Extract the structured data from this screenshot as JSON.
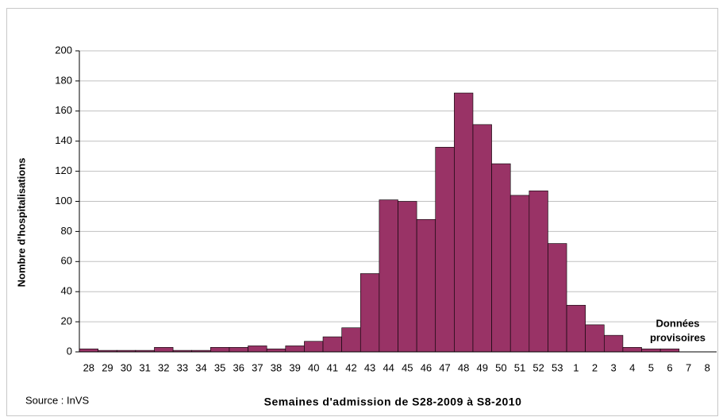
{
  "chart_data": {
    "type": "bar",
    "y_label": "Nombre d'hospitalisations",
    "x_label": "Semaines d'admission de S28-2009 à S8-2010",
    "source": "Source : InVS",
    "annotation_lines": [
      "Données",
      "provisoires"
    ],
    "categories": [
      "28",
      "29",
      "30",
      "31",
      "32",
      "33",
      "34",
      "35",
      "36",
      "37",
      "38",
      "39",
      "40",
      "41",
      "42",
      "43",
      "44",
      "45",
      "46",
      "47",
      "48",
      "49",
      "50",
      "51",
      "52",
      "53",
      "1",
      "2",
      "3",
      "4",
      "5",
      "6",
      "7",
      "8"
    ],
    "values": [
      2,
      1,
      1,
      1,
      3,
      1,
      1,
      3,
      3,
      4,
      2,
      4,
      7,
      10,
      16,
      52,
      101,
      100,
      88,
      136,
      172,
      151,
      125,
      104,
      107,
      72,
      31,
      18,
      11,
      3,
      2,
      2,
      0,
      0
    ],
    "color": "#993366",
    "ylim": [
      0,
      200
    ],
    "yticks": [
      0,
      20,
      40,
      60,
      80,
      100,
      120,
      140,
      160,
      180,
      200
    ],
    "grid": true
  }
}
